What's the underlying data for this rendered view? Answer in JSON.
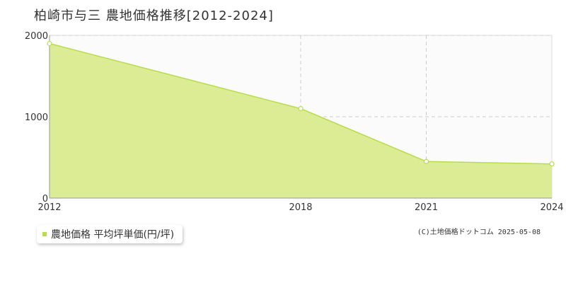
{
  "header": {
    "title": "柏崎市与三 農地価格推移[2012-2024]"
  },
  "legend": {
    "label": "農地価格 平均坪単価(円/坪)"
  },
  "footer": {
    "copyright": "(C)土地価格ドットコム 2025-05-08"
  },
  "colors": {
    "fill": "#dcec94",
    "line": "#b8dc50",
    "grid": "#cccccc",
    "axis": "#999999",
    "plot_bg": "#fbfbfc"
  },
  "chart_data": {
    "type": "area",
    "title": "柏崎市与三 農地価格推移[2012-2024]",
    "x": [
      2012,
      2018,
      2021,
      2024
    ],
    "series": [
      {
        "name": "農地価格 平均坪単価(円/坪)",
        "values": [
          1900,
          1100,
          450,
          420
        ]
      }
    ],
    "x_ticks": [
      "2012",
      "2018",
      "2021",
      "2024"
    ],
    "y_ticks": [
      "0",
      "1000",
      "2000"
    ],
    "xlim": [
      2012,
      2024
    ],
    "ylim": [
      0,
      2000
    ],
    "grid": true,
    "legend_position": "bottom-left"
  }
}
